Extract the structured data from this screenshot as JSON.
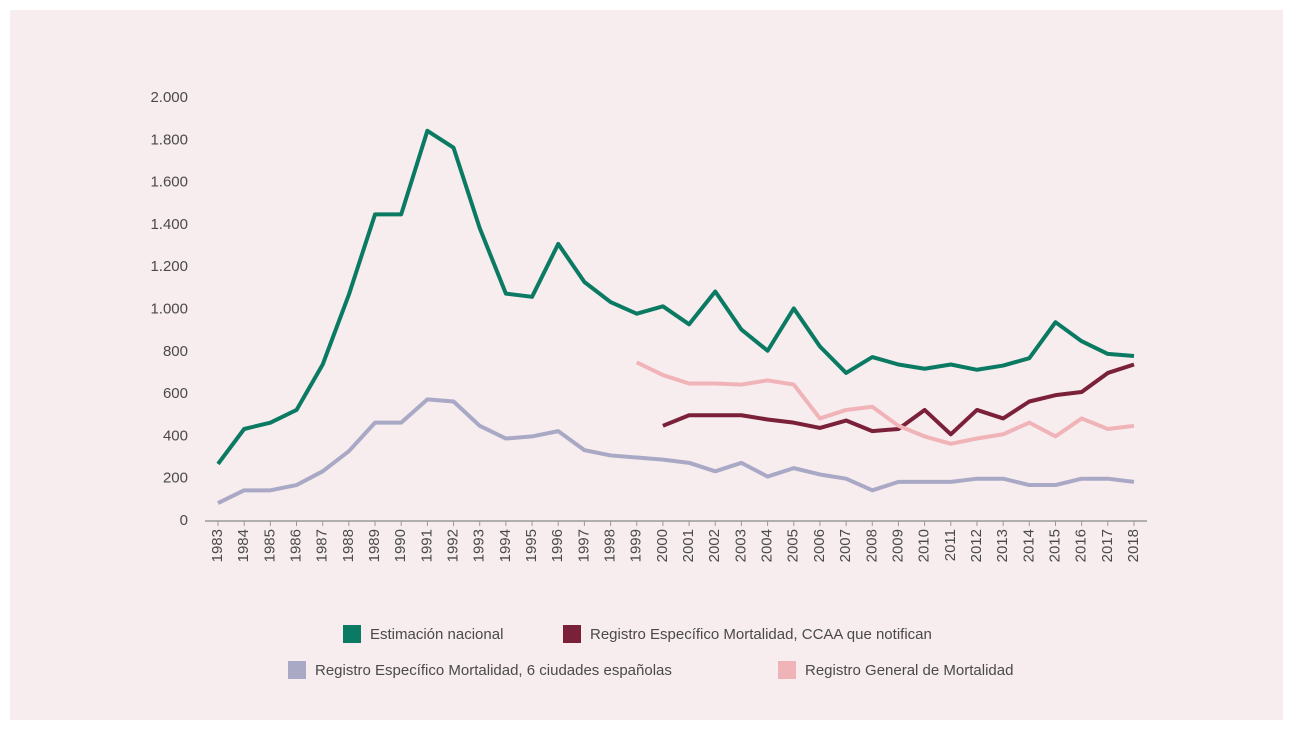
{
  "chart_data": {
    "type": "line",
    "categories": [
      "1983",
      "1984",
      "1985",
      "1986",
      "1987",
      "1988",
      "1989",
      "1990",
      "1991",
      "1992",
      "1993",
      "1994",
      "1995",
      "1996",
      "1997",
      "1998",
      "1999",
      "2000",
      "2001",
      "2002",
      "2003",
      "2004",
      "2005",
      "2006",
      "2007",
      "2008",
      "2009",
      "2010",
      "2011",
      "2012",
      "2013",
      "2014",
      "2015",
      "2016",
      "2017",
      "2018"
    ],
    "series": [
      {
        "name": "Estimación nacional",
        "color": "#0b7a63",
        "values": [
          270,
          435,
          465,
          525,
          740,
          1070,
          1450,
          1450,
          1845,
          1765,
          1385,
          1075,
          1060,
          1310,
          1130,
          1035,
          980,
          1015,
          930,
          1085,
          905,
          805,
          1005,
          825,
          700,
          775,
          740,
          720,
          740,
          715,
          735,
          770,
          940,
          850,
          790,
          780
        ]
      },
      {
        "name": "Registro Específico Mortalidad, CCAA que notifican",
        "color": "#7a2038",
        "values": [
          null,
          null,
          null,
          null,
          null,
          null,
          null,
          null,
          null,
          null,
          null,
          null,
          null,
          null,
          null,
          null,
          null,
          450,
          500,
          500,
          500,
          480,
          465,
          440,
          475,
          425,
          435,
          525,
          410,
          525,
          485,
          565,
          595,
          610,
          700,
          740
        ]
      },
      {
        "name": "Registro Específico Mortalidad, 6 ciudades españolas",
        "color": "#a9a9c6",
        "values": [
          85,
          145,
          145,
          170,
          235,
          330,
          465,
          465,
          575,
          565,
          450,
          390,
          400,
          425,
          335,
          310,
          300,
          290,
          275,
          235,
          275,
          210,
          250,
          220,
          200,
          145,
          185,
          185,
          185,
          200,
          200,
          170,
          170,
          200,
          200,
          185
        ]
      },
      {
        "name": "Registro General de Mortalidad",
        "color": "#f0b4b8",
        "values": [
          null,
          null,
          null,
          null,
          null,
          null,
          null,
          null,
          null,
          null,
          null,
          null,
          null,
          null,
          null,
          null,
          750,
          690,
          650,
          650,
          645,
          665,
          645,
          485,
          525,
          540,
          450,
          400,
          365,
          390,
          410,
          465,
          400,
          485,
          435,
          450
        ]
      }
    ],
    "ylim": [
      0,
      2000
    ],
    "yticks": [
      0,
      200,
      400,
      600,
      800,
      {
        "value": 1000,
        "label": "1.000"
      },
      {
        "value": 1200,
        "label": "1.200"
      },
      {
        "value": 1400,
        "label": "1.400"
      },
      {
        "value": 1600,
        "label": "1.600"
      },
      {
        "value": 1800,
        "label": "1.800"
      },
      {
        "value": 2000,
        "label": "2.000"
      }
    ]
  }
}
